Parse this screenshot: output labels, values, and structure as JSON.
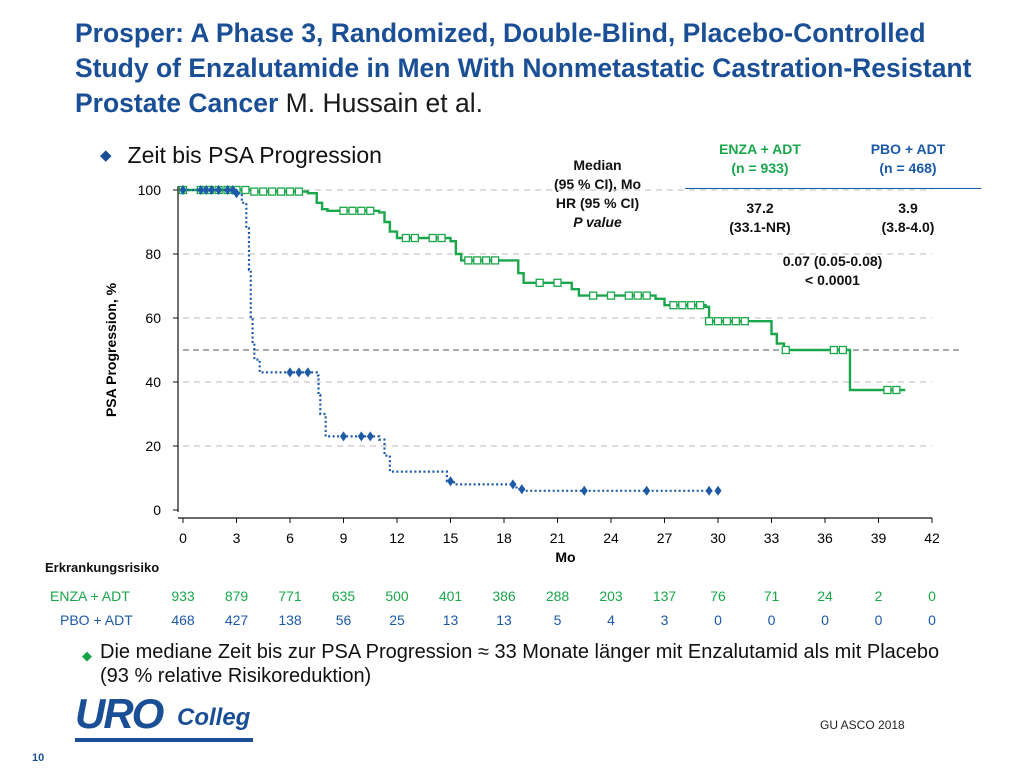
{
  "title": {
    "main": "Prosper: A Phase 3, Randomized, Double-Blind, Placebo-Controlled Study of Enzalutamide in Men With Nonmetastatic Castration-Resistant Prostate Cancer",
    "authors": "M. Hussain et al."
  },
  "bullet_top": "Zeit bis PSA Progression",
  "stats": {
    "row_label_lines": [
      "Median",
      "(95 % CI), Mo",
      "HR (95 % CI)",
      "P value"
    ],
    "enza_header": [
      "ENZA + ADT",
      "(n = 933)"
    ],
    "pbo_header": [
      "PBO + ADT",
      "(n = 468)"
    ],
    "enza_median": [
      "37.2",
      "(33.1-NR)"
    ],
    "pbo_median": [
      "3.9",
      "(3.8-4.0)"
    ],
    "hr": "0.07 (0.05-0.08)",
    "p": "< 0.0001"
  },
  "risk": {
    "title": "Erkrankungsrisiko",
    "enza_label": "ENZA + ADT",
    "pbo_label": "PBO + ADT",
    "enza_values": [
      933,
      879,
      771,
      635,
      500,
      401,
      386,
      288,
      203,
      137,
      76,
      71,
      24,
      2,
      0
    ],
    "pbo_values": [
      468,
      427,
      138,
      56,
      25,
      13,
      13,
      5,
      4,
      3,
      0,
      0,
      0,
      0,
      0
    ]
  },
  "bottom_bullet": "Die mediane Zeit bis zur PSA Progression ≈ 33 Monate länger mit Enzalutamid als mit  Placebo (93 % relative Risikoreduktion)",
  "logo": {
    "uro": "URO",
    "colleg": "Colleg"
  },
  "source": "GU ASCO 2018",
  "page_number": "10",
  "colors": {
    "title": "#1a4f96",
    "enza": "#1aa64a",
    "pbo": "#1c5aa6"
  },
  "chart_data": {
    "type": "line",
    "title": "Zeit bis PSA Progression",
    "xlabel": "Mo",
    "ylabel": "PSA Progression, %",
    "xlim": [
      0,
      42
    ],
    "ylim": [
      0,
      100
    ],
    "xticks": [
      0,
      3,
      6,
      9,
      12,
      15,
      18,
      21,
      24,
      27,
      30,
      33,
      36,
      39,
      42
    ],
    "yticks": [
      0,
      20,
      40,
      60,
      80,
      100
    ],
    "reference_line_y": 50,
    "series": [
      {
        "name": "ENZA + ADT",
        "style": "solid",
        "steps": [
          [
            0,
            100
          ],
          [
            4,
            99.5
          ],
          [
            7,
            99
          ],
          [
            7.5,
            96
          ],
          [
            7.8,
            94
          ],
          [
            8.1,
            93.5
          ],
          [
            11,
            93
          ],
          [
            11.3,
            90
          ],
          [
            11.6,
            87
          ],
          [
            12,
            85
          ],
          [
            14,
            85
          ],
          [
            15,
            84
          ],
          [
            15.3,
            80
          ],
          [
            15.6,
            78
          ],
          [
            18.5,
            78
          ],
          [
            18.8,
            74
          ],
          [
            19.1,
            71
          ],
          [
            21.5,
            71
          ],
          [
            21.8,
            69
          ],
          [
            22.2,
            67
          ],
          [
            25.5,
            67
          ],
          [
            26.5,
            66
          ],
          [
            27,
            64
          ],
          [
            29.3,
            63.5
          ],
          [
            29.5,
            59
          ],
          [
            32.5,
            59
          ],
          [
            33,
            55
          ],
          [
            33.3,
            52
          ],
          [
            33.7,
            50
          ],
          [
            37,
            50
          ],
          [
            37.4,
            37.5
          ],
          [
            40.5,
            37.5
          ]
        ],
        "censor_x": [
          0,
          1,
          1.5,
          2,
          2.5,
          3,
          3.5,
          4,
          4.5,
          5,
          5.5,
          6,
          6.5,
          9,
          9.5,
          10,
          10.5,
          12.5,
          13,
          14,
          14.5,
          16,
          16.5,
          17,
          17.5,
          20,
          21,
          23,
          24,
          25,
          25.5,
          26,
          27.5,
          28,
          28.5,
          29,
          29.5,
          30,
          30.5,
          31,
          31.5,
          33.8,
          36.5,
          37,
          39.5,
          40
        ]
      },
      {
        "name": "PBO + ADT",
        "style": "dotted",
        "steps": [
          [
            0,
            100
          ],
          [
            3,
            99
          ],
          [
            3.3,
            96
          ],
          [
            3.55,
            88
          ],
          [
            3.7,
            75
          ],
          [
            3.8,
            60
          ],
          [
            3.9,
            52
          ],
          [
            4,
            47
          ],
          [
            4.3,
            43
          ],
          [
            7.5,
            42
          ],
          [
            7.6,
            36
          ],
          [
            7.7,
            30
          ],
          [
            8,
            23
          ],
          [
            11,
            22
          ],
          [
            11.3,
            17
          ],
          [
            11.6,
            12
          ],
          [
            14.5,
            12
          ],
          [
            14.8,
            9
          ],
          [
            15.2,
            8
          ],
          [
            18.5,
            8
          ],
          [
            18.7,
            6.5
          ],
          [
            19.2,
            6
          ],
          [
            29.8,
            6
          ]
        ],
        "censor_x": [
          0,
          1,
          1.3,
          1.6,
          2,
          2.5,
          2.8,
          3,
          6,
          6.5,
          7,
          9,
          10,
          10.5,
          15,
          18.5,
          19,
          22.5,
          26,
          29.5,
          30
        ]
      }
    ]
  }
}
